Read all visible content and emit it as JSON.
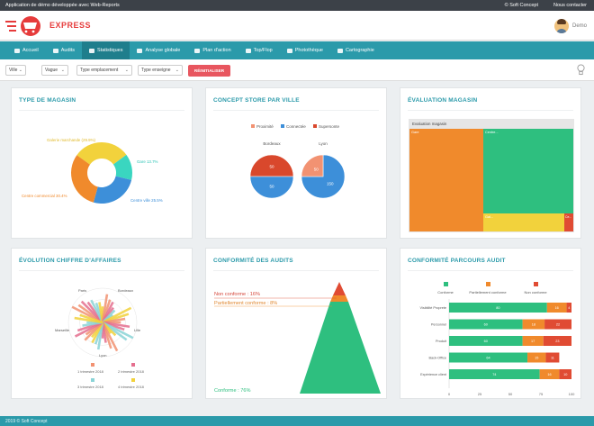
{
  "topbar": {
    "title": "Application de démo développée avec Web-Reports",
    "brand": "© Soft Concept",
    "contact": "Nous contacter"
  },
  "header": {
    "logo_text": "EXPRESS",
    "user_name": "Demo"
  },
  "nav": {
    "items": [
      {
        "label": "Accueil",
        "active": false
      },
      {
        "label": "Audits",
        "active": false
      },
      {
        "label": "Statistiques",
        "active": true
      },
      {
        "label": "Analyse globale",
        "active": false
      },
      {
        "label": "Plan d'action",
        "active": false
      },
      {
        "label": "Top/Flop",
        "active": false
      },
      {
        "label": "Photothèque",
        "active": false
      },
      {
        "label": "Cartographie",
        "active": false
      }
    ]
  },
  "filters": {
    "ville": "Ville",
    "vague": "Vague",
    "type_emplacement": "Type emplacement",
    "type_enseigne": "Type enseigne",
    "reset": "RÉINITIALISER"
  },
  "colors": {
    "accent": "#2b9aaa",
    "green": "#2ebf7f",
    "orange": "#f08a2c",
    "red": "#e04b33",
    "yellow": "#f2d23c",
    "blue": "#3d8fd9",
    "salmon": "#f29272",
    "teal": "#3ad6c0"
  },
  "cards": {
    "type_magasin": {
      "title": "TYPE DE MAGASIN",
      "chart_data": {
        "type": "pie",
        "labels": [
          "Galerie marchande",
          "Centre ville",
          "Gare",
          "Centre commercial"
        ],
        "label_texts": [
          "Galerie marchande (29.9%)",
          "Centre ville 25.5%",
          "Gare 13.7%",
          "Centre commercial 30.4%"
        ],
        "values": [
          29.9,
          25.5,
          13.7,
          30.4
        ],
        "colors": [
          "#f2d23c",
          "#3d8fd9",
          "#3ad6c0",
          "#f08a2c"
        ]
      }
    },
    "concept_store": {
      "title": "CONCEPT STORE PAR VILLE",
      "chart_data": {
        "type": "pie",
        "legend": [
          "Proximité",
          "Connectée",
          "Supersonte"
        ],
        "legend_colors": [
          "#f29272",
          "#3d8fd9",
          "#d9482c"
        ],
        "pies": [
          {
            "name": "Bordeaux",
            "values": [
              50,
              50
            ],
            "labels": [
              "50",
              "50"
            ],
            "colors": [
              "#d9482c",
              "#3d8fd9"
            ]
          },
          {
            "name": "Lyon",
            "values": [
              150,
              50
            ],
            "labels": [
              "150",
              "50"
            ],
            "colors": [
              "#3d8fd9",
              "#f29272"
            ]
          }
        ]
      }
    },
    "evaluation": {
      "title": "ÉVALUATION MAGASIN",
      "inner_title": "Evaluation magasin",
      "labels": [
        "Gare",
        "Centre...",
        "Gal...",
        "Ce..."
      ],
      "colors": [
        "#f08a2c",
        "#2ebf7f",
        "#f2d23c",
        "#e04b33"
      ],
      "chart_data": {
        "type": "heatmap",
        "groups": [
          "Gare",
          "Centre...",
          "Gal...",
          "Ce..."
        ],
        "values": [
          26,
          58,
          14,
          2
        ]
      }
    },
    "evolution": {
      "title": "ÉVOLUTION CHIFFRE D'AFFAIRES",
      "axis_labels": [
        "Paris",
        "Bordeaux",
        "Lille",
        "Lyon",
        "Marseille"
      ],
      "legend": [
        "1 trimestre 2018",
        "2 trimestre 2018",
        "3 trimestre 2018",
        "4 trimestre 2018"
      ],
      "legend_colors": [
        "#f29272",
        "#e56f8f",
        "#8ad4d7",
        "#f2d23c"
      ],
      "chart_data": {
        "type": "bar",
        "categories": [
          "Paris",
          "Bordeaux",
          "Lille",
          "Lyon",
          "Marseille"
        ],
        "series": [
          {
            "name": "1 trimestre 2018",
            "values": [
              30,
              25,
              20,
              28,
              22
            ]
          },
          {
            "name": "2 trimestre 2018",
            "values": [
              26,
              20,
              24,
              18,
              27
            ]
          },
          {
            "name": "3 trimestre 2018",
            "values": [
              22,
              15,
              30,
              24,
              18
            ]
          },
          {
            "name": "4 trimestre 2018",
            "values": [
              18,
              28,
              16,
              20,
              25
            ]
          }
        ]
      }
    },
    "conformite": {
      "title": "CONFORMITÉ DES AUDITS",
      "labels": [
        "Non conforme : 16%",
        "Partiellement conforme : 8%",
        "Conforme : 76%"
      ],
      "chart_data": {
        "type": "bar",
        "categories": [
          "Non conforme",
          "Partiellement conforme",
          "Conforme"
        ],
        "values": [
          16,
          8,
          76
        ],
        "colors": [
          "#e04b33",
          "#f08a2c",
          "#2ebf7f"
        ]
      }
    },
    "parcours": {
      "title": "CONFORMITÉ PARCOURS AUDIT",
      "legend": [
        "Conforme",
        "Partiellement conforme",
        "Non conforme"
      ],
      "legend_colors": [
        "#2ebf7f",
        "#f08a2c",
        "#e04b33"
      ],
      "x_ticks": [
        "0",
        "25",
        "50",
        "75",
        "100"
      ],
      "chart_data": {
        "type": "bar",
        "categories": [
          "Visibilité Proprete",
          "Personnel",
          "Produit",
          "Back-Office",
          "Expérience client"
        ],
        "series": [
          {
            "name": "Conforme",
            "values": [
              80,
              60,
              60,
              64,
              74
            ]
          },
          {
            "name": "Partiellement conforme",
            "values": [
              16,
              18,
              17,
              15,
              16
            ]
          },
          {
            "name": "Non conforme",
            "values": [
              4,
              22,
              23,
              11,
              10
            ]
          }
        ],
        "xlim": [
          0,
          100
        ]
      }
    }
  },
  "footer": {
    "text": "2019 © Soft Concept"
  }
}
